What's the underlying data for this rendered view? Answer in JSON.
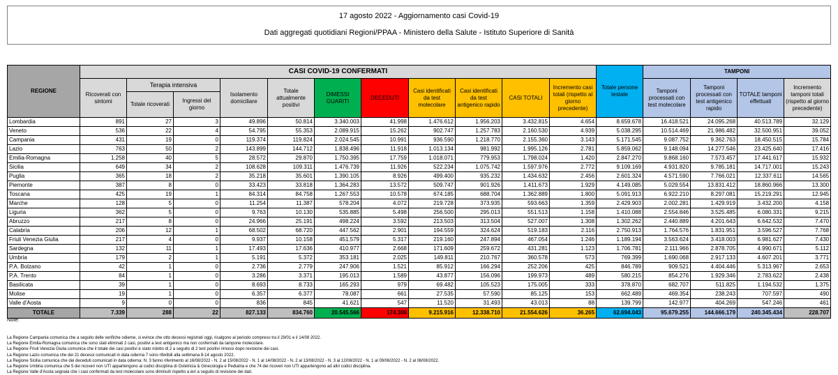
{
  "title": "17 agosto 2022 - Aggiornamento casi Covid-19",
  "subtitle": "Dati aggregati quotidiani Regioni/PPAA - Ministero della Salute - Istituto Superiore di Sanità",
  "headers": {
    "regione": "REGIONE",
    "casi_group": "CASI COVID-19 CONFERMATI",
    "tamponi_group": "TAMPONI",
    "terapia_group": "Terapia intensiva",
    "ricoverati": "Ricoverati con sintomi",
    "ti_totale": "Totale ricoverati",
    "ti_ingressi": "Ingressi del giorno",
    "isolamento": "Isolamento domiciliare",
    "totale_positivi": "Totale attualmente positivi",
    "dimessi": "DIMESSI GUARITI",
    "deceduti": "DECEDUTI",
    "casi_molecolare": "Casi identificati da test molecolare",
    "casi_antigenico": "Casi identificati da test antigenico rapido",
    "casi_totali": "CASI TOTALI",
    "incremento_casi": "Incremento casi totali (rispetto al giorno precedente)",
    "persone_testate": "Totale persone testate",
    "tamponi_molecolare": "Tamponi processati con test molecolare",
    "tamponi_antigenico": "Tamponi processati con test antigenico rapido",
    "tamponi_totale": "TOTALE tamponi effettuati",
    "incremento_tamponi": "Incremento tamponi totali (rispetto al giorno precedente)"
  },
  "rows": [
    [
      "Lombardia",
      "891",
      "27",
      "3",
      "49.896",
      "50.814",
      "3.340.003",
      "41.998",
      "1.476.612",
      "1.956.203",
      "3.432.815",
      "4.654",
      "8.659.678",
      "16.418.521",
      "24.095.268",
      "40.513.789",
      "32.129"
    ],
    [
      "Veneto",
      "536",
      "22",
      "4",
      "54.795",
      "55.353",
      "2.089.915",
      "15.262",
      "902.747",
      "1.257.783",
      "2.160.530",
      "4.939",
      "5.038.295",
      "10.514.469",
      "21.986.482",
      "32.500.951",
      "39.052"
    ],
    [
      "Campania",
      "431",
      "19",
      "0",
      "119.374",
      "119.824",
      "2.024.545",
      "10.991",
      "936.590",
      "1.218.770",
      "2.155.360",
      "3.143",
      "5.171.545",
      "9.087.752",
      "9.362.763",
      "18.450.515",
      "15.784"
    ],
    [
      "Lazio",
      "763",
      "50",
      "2",
      "143.899",
      "144.712",
      "1.838.496",
      "11.918",
      "1.013.134",
      "981.992",
      "1.995.126",
      "2.781",
      "5.859.062",
      "9.148.094",
      "14.277.546",
      "23.425.640",
      "17.416"
    ],
    [
      "Emilia-Romagna",
      "1.258",
      "40",
      "5",
      "28.572",
      "29.870",
      "1.750.395",
      "17.759",
      "1.018.071",
      "779.953",
      "1.798.024",
      "1.420",
      "2.847.270",
      "9.868.160",
      "7.573.457",
      "17.441.617",
      "15.932"
    ],
    [
      "Sicilia",
      "649",
      "34",
      "2",
      "108.628",
      "109.311",
      "1.476.739",
      "11.926",
      "522.234",
      "1.075.742",
      "1.597.976",
      "2.772",
      "9.109.169",
      "4.931.820",
      "9.785.181",
      "14.717.001",
      "15.243"
    ],
    [
      "Puglia",
      "365",
      "18",
      "2",
      "35.218",
      "35.601",
      "1.390.105",
      "8.926",
      "499.400",
      "935.232",
      "1.434.632",
      "2.456",
      "2.601.324",
      "4.571.590",
      "7.766.021",
      "12.337.611",
      "14.565"
    ],
    [
      "Piemonte",
      "387",
      "8",
      "0",
      "33.423",
      "33.818",
      "1.364.283",
      "13.572",
      "509.747",
      "901.926",
      "1.411.673",
      "1.929",
      "4.149.085",
      "5.029.554",
      "13.831.412",
      "18.860.966",
      "13.300"
    ],
    [
      "Toscana",
      "425",
      "19",
      "1",
      "84.314",
      "84.758",
      "1.267.553",
      "10.578",
      "674.185",
      "688.704",
      "1.362.889",
      "1.800",
      "5.091.913",
      "6.922.210",
      "8.297.081",
      "15.219.291",
      "12.945"
    ],
    [
      "Marche",
      "128",
      "5",
      "0",
      "11.254",
      "11.387",
      "578.204",
      "4.072",
      "219.728",
      "373.935",
      "593.663",
      "1.359",
      "2.429.903",
      "2.002.281",
      "1.429.919",
      "3.432.200",
      "4.158"
    ],
    [
      "Liguria",
      "362",
      "5",
      "0",
      "9.763",
      "10.130",
      "535.885",
      "5.498",
      "256.500",
      "295.013",
      "551.513",
      "1.158",
      "1.410.088",
      "2.554.846",
      "3.525.485",
      "6.080.331",
      "9.215"
    ],
    [
      "Abruzzo",
      "217",
      "8",
      "0",
      "24.966",
      "25.191",
      "498.224",
      "3.592",
      "213.503",
      "313.504",
      "527.007",
      "1.308",
      "1.302.262",
      "2.440.889",
      "4.201.643",
      "6.642.532",
      "7.470"
    ],
    [
      "Calabria",
      "206",
      "12",
      "1",
      "68.502",
      "68.720",
      "447.562",
      "2.901",
      "194.559",
      "324.624",
      "519.183",
      "2.116",
      "2.750.913",
      "1.764.576",
      "1.831.951",
      "3.596.527",
      "7.768"
    ],
    [
      "Friuli Venezia Giulia",
      "217",
      "4",
      "0",
      "9.937",
      "10.158",
      "451.579",
      "5.317",
      "219.160",
      "247.894",
      "467.054",
      "1.246",
      "1.189.194",
      "3.563.624",
      "3.418.003",
      "6.981.627",
      "7.430"
    ],
    [
      "Sardegna",
      "132",
      "11",
      "1",
      "17.493",
      "17.636",
      "410.977",
      "2.668",
      "171.609",
      "259.672",
      "431.281",
      "1.123",
      "1.706.781",
      "2.111.966",
      "2.878.705",
      "4.990.671",
      "5.112"
    ],
    [
      "Umbria",
      "179",
      "2",
      "1",
      "5.191",
      "5.372",
      "353.181",
      "2.025",
      "149.811",
      "210.767",
      "360.578",
      "573",
      "769.399",
      "1.690.068",
      "2.917.133",
      "4.607.201",
      "3.771"
    ],
    [
      "P.A. Bolzano",
      "42",
      "1",
      "0",
      "2.736",
      "2.779",
      "247.906",
      "1.521",
      "85.912",
      "166.294",
      "252.206",
      "425",
      "846.789",
      "909.521",
      "4.404.446",
      "5.313.967",
      "2.653"
    ],
    [
      "P.A. Trento",
      "84",
      "1",
      "0",
      "3.286",
      "3.371",
      "195.013",
      "1.589",
      "43.877",
      "156.096",
      "199.973",
      "489",
      "580.215",
      "854.276",
      "1.929.346",
      "2.783.622",
      "2.438"
    ],
    [
      "Basilicata",
      "39",
      "1",
      "0",
      "8.693",
      "8.733",
      "165.293",
      "979",
      "69.482",
      "105.523",
      "175.005",
      "333",
      "378.870",
      "682.707",
      "511.825",
      "1.194.532",
      "1.375"
    ],
    [
      "Molise",
      "19",
      "1",
      "0",
      "6.357",
      "6.377",
      "78.087",
      "661",
      "27.535",
      "57.590",
      "85.125",
      "153",
      "662.489",
      "469.354",
      "238.243",
      "707.597",
      "490"
    ],
    [
      "Valle d'Aosta",
      "9",
      "0",
      "0",
      "836",
      "845",
      "41.621",
      "547",
      "11.520",
      "31.493",
      "43.013",
      "88",
      "139.799",
      "142.977",
      "404.269",
      "547.246",
      "461"
    ]
  ],
  "totals": [
    "TOTALE",
    "7.339",
    "288",
    "22",
    "827.133",
    "834.760",
    "20.545.566",
    "174.300",
    "9.215.916",
    "12.338.710",
    "21.554.626",
    "36.265",
    "62.694.043",
    "95.679.255",
    "144.666.179",
    "240.345.434",
    "228.707"
  ],
  "notes_label": "Note:",
  "notes": [
    "La Regione Campania comunica che a seguito delle verifiche odierne, si evince che otto decessi registrati oggi, risalgono al periodo compreso tra il 29/01 e il 14/08 2022.",
    "La Regione Emilia-Romagna comunica che sono stati eliminati 2 casi, positivi a test antigenico ma non confermati da tampone molecolare.",
    "La Regione Friuli Venezia Giulia comunica che il totale dei casi positivi è stato ridotto di 2 a seguito di 2 test positivi rimossi dopo revisione dei casi.",
    "La Regione Lazio comunica che dei 21 decessi comunicati in data odierna 7 sono riferibili alla settimana 8-14 agosto 2022.",
    "La Regione Sicilia comunica che dei deceduti comunicati in data odierna: N. 3 fanno riferimento al 16/08/2022 - N. 2 al 15/08/2022 - N. 1 al 14/08/2022 - N. 2 al 13/08/2022 - N. 3 al 12/08/2022 - N. 1 al 09/08/2022 - N. 2 al 08/08/2022.",
    "La Regione Umbria comunica che 5 dei ricoveri non UTI appartengono ai codici disciplina di Ostetricia & Ginecologia e Pediatria e che 74 dei ricoveri non UTI appartengono ad altri codici disciplina.",
    "La Regione Valle d'Aosta segnala che i casi confermati da test molecolare sono diminuiti rispetto a ieri a seguito di revisione dei dati."
  ],
  "colors": {
    "dimessi": "#00b050",
    "deceduti": "#ff0000",
    "casi": "#ffc000",
    "persone": "#00b0f0",
    "tamponi": "#b4c6e7"
  }
}
